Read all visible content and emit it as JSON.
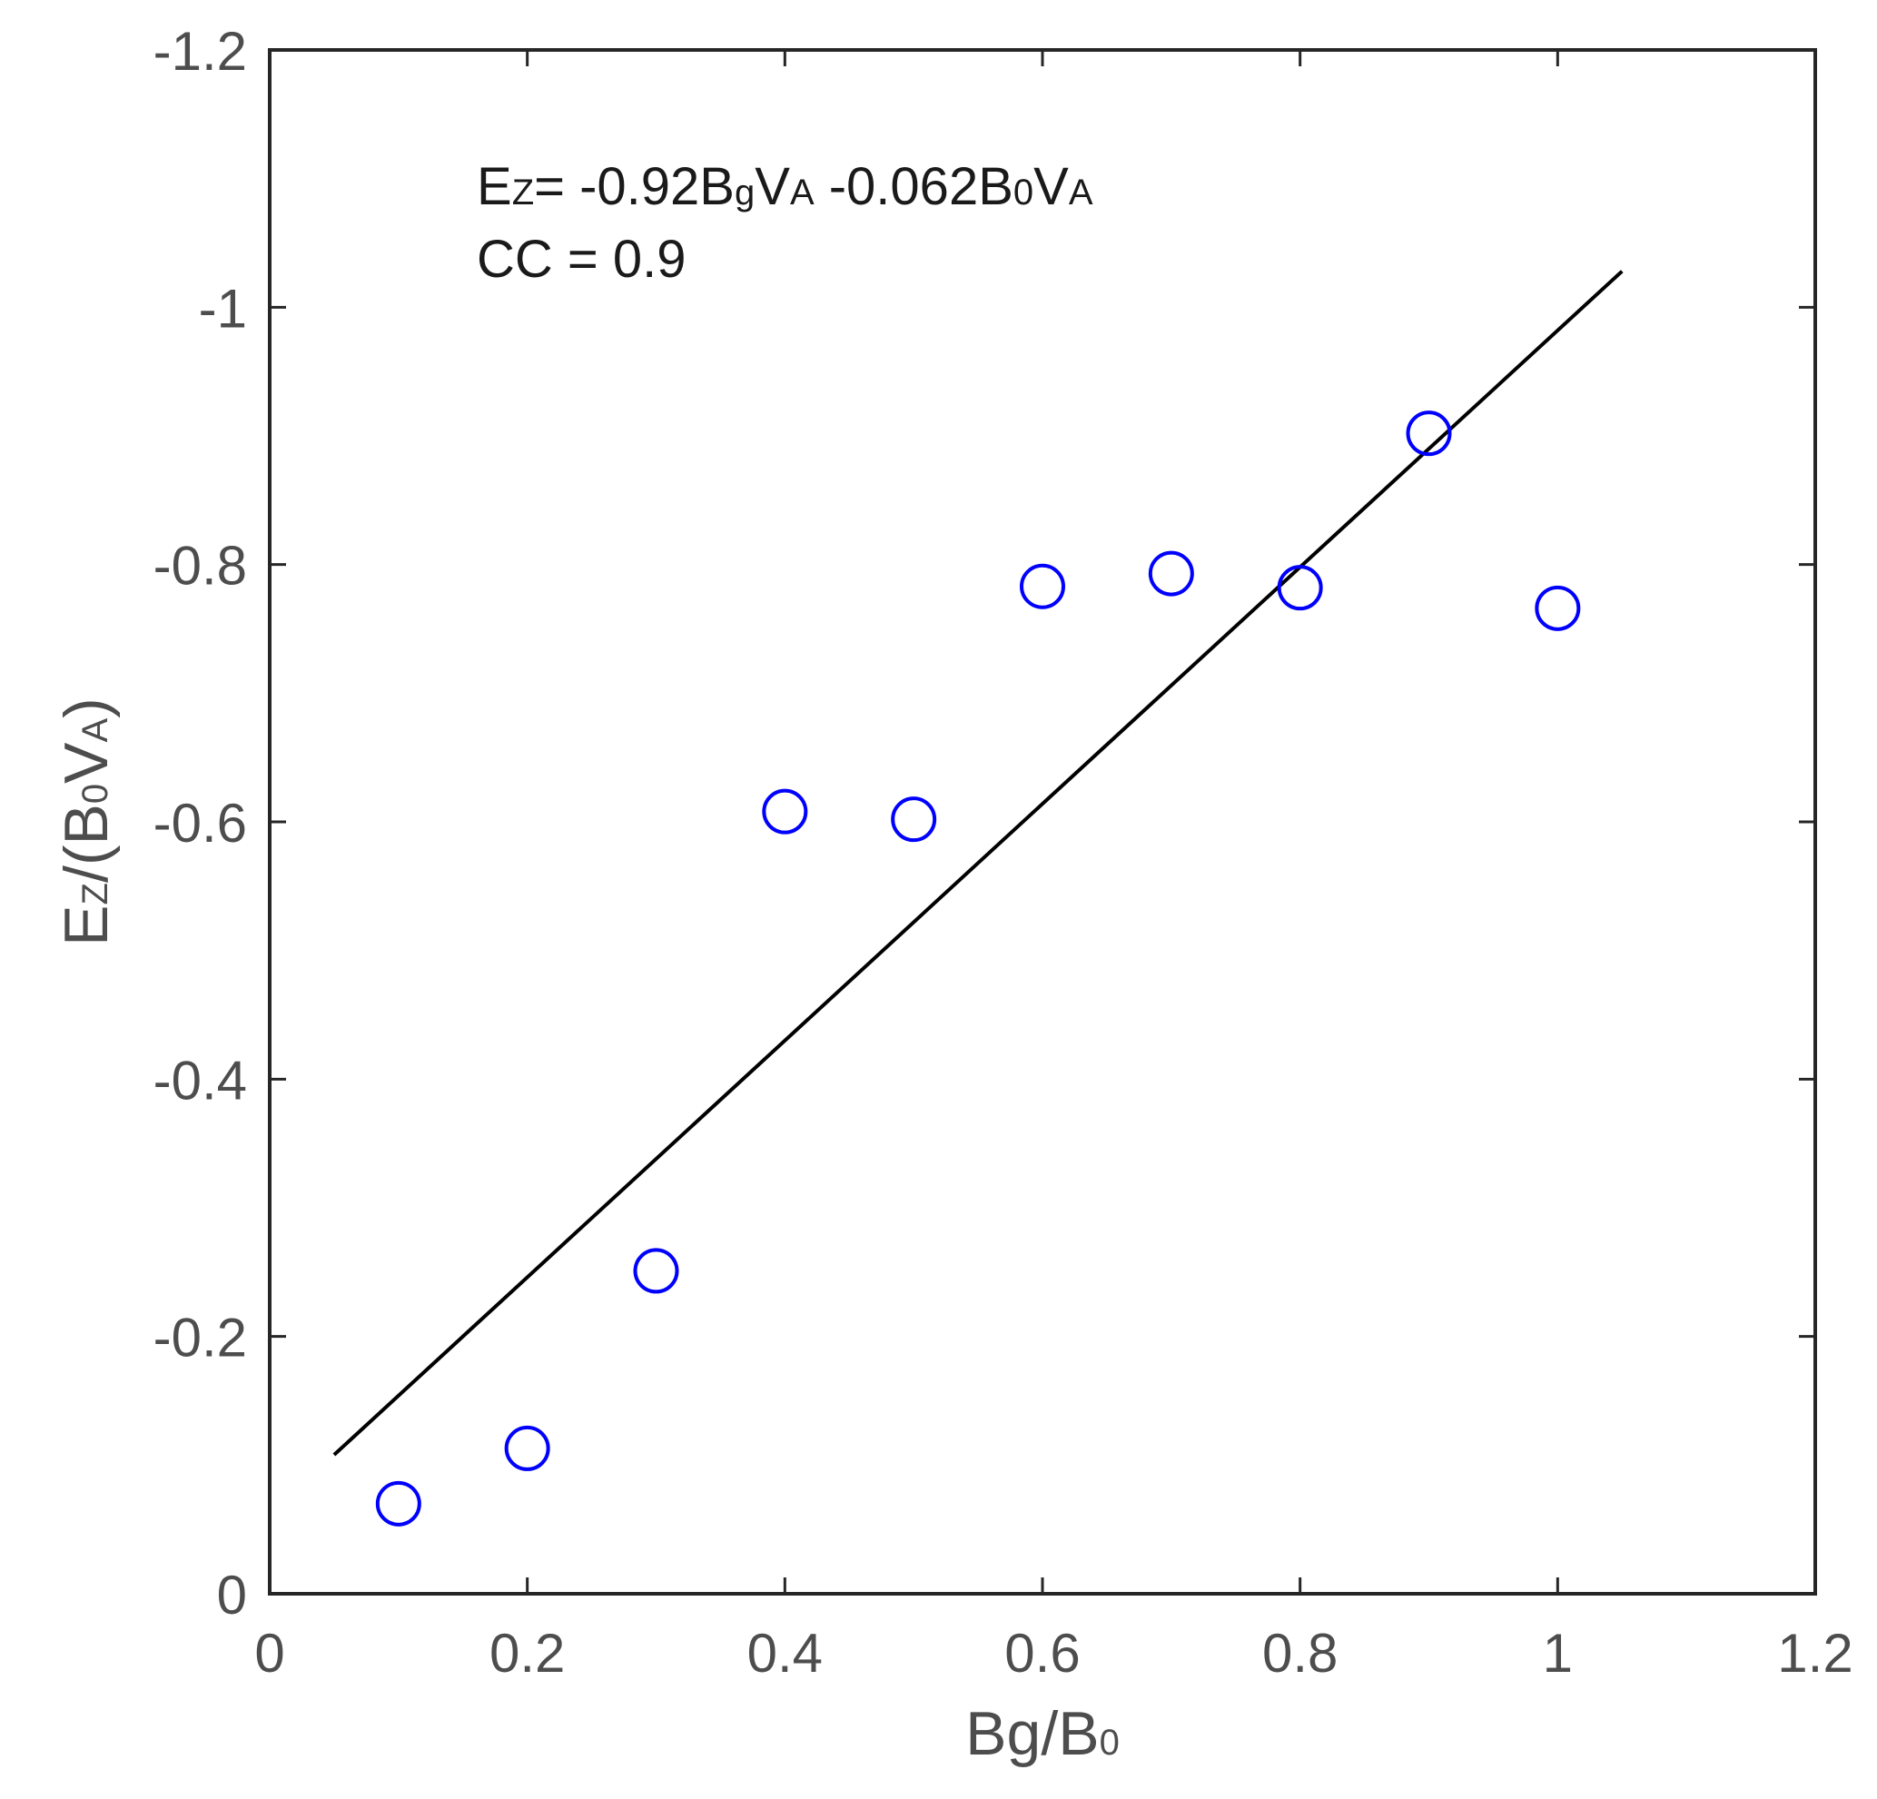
{
  "chart_data": {
    "type": "scatter",
    "x_label": {
      "main": "Bg/B",
      "sub": "0"
    },
    "y_label": {
      "parts": [
        {
          "text": "E",
          "sub": false
        },
        {
          "text": "Z",
          "sub": true
        },
        {
          "text": "/(B",
          "sub": false
        },
        {
          "text": "0",
          "sub": true
        },
        {
          "text": "V",
          "sub": false
        },
        {
          "text": "A",
          "sub": true
        },
        {
          "text": ")",
          "sub": false
        }
      ]
    },
    "xlim": [
      0,
      1.2
    ],
    "ylim": [
      0,
      -1.2
    ],
    "y_reversed": true,
    "x_ticks": [
      0,
      0.2,
      0.4,
      0.6,
      0.8,
      1.0,
      1.2
    ],
    "x_tick_labels": [
      "0",
      "0.2",
      "0.4",
      "0.6",
      "0.8",
      "1",
      "1.2"
    ],
    "y_ticks": [
      0,
      -0.2,
      -0.4,
      -0.6,
      -0.8,
      -1.0,
      -1.2
    ],
    "y_tick_labels": [
      "0",
      "-0.2",
      "-0.4",
      "-0.6",
      "-0.8",
      "-1",
      "-1.2"
    ],
    "grid": false,
    "series": [
      {
        "marker": "circle-open",
        "color": "#0000ff",
        "x": [
          0.1,
          0.2,
          0.3,
          0.4,
          0.5,
          0.6,
          0.7,
          0.8,
          0.9,
          1.0
        ],
        "y": [
          -0.07,
          -0.113,
          -0.251,
          -0.608,
          -0.602,
          -0.783,
          -0.793,
          -0.782,
          -0.902,
          -0.766
        ]
      }
    ],
    "fit_line": {
      "color": "#000000",
      "x": [
        0.05,
        1.05
      ],
      "y": [
        -0.108,
        -1.028
      ]
    },
    "annotations": {
      "equation": [
        {
          "text": "E",
          "sub": false
        },
        {
          "text": "Z",
          "sub": true
        },
        {
          "text": "= -0.92B",
          "sub": false
        },
        {
          "text": "g",
          "sub": true
        },
        {
          "text": "V",
          "sub": false
        },
        {
          "text": "A",
          "sub": true
        },
        {
          "text": " -0.062B",
          "sub": false
        },
        {
          "text": "0",
          "sub": true
        },
        {
          "text": "V",
          "sub": false
        },
        {
          "text": "A",
          "sub": true
        }
      ],
      "cc": "CC = 0.9"
    }
  }
}
